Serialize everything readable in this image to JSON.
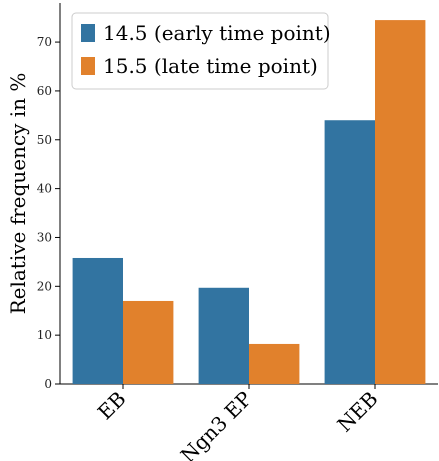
{
  "chart_data": {
    "type": "bar",
    "categories": [
      "EB",
      "Ngn3 EP",
      "NEB"
    ],
    "series": [
      {
        "name": "14.5 (early time point)",
        "values": [
          25.8,
          19.7,
          54.0
        ],
        "color": "#3274a1"
      },
      {
        "name": "15.5 (late time point)",
        "values": [
          17.0,
          8.2,
          74.5
        ],
        "color": "#e1812c"
      }
    ],
    "xlabel": "",
    "ylabel": "Relative frequency in %",
    "ylim": [
      0,
      78
    ],
    "yticks": [
      0,
      10,
      20,
      30,
      40,
      50,
      60,
      70
    ],
    "grid": false,
    "legend_position": "top-left"
  }
}
